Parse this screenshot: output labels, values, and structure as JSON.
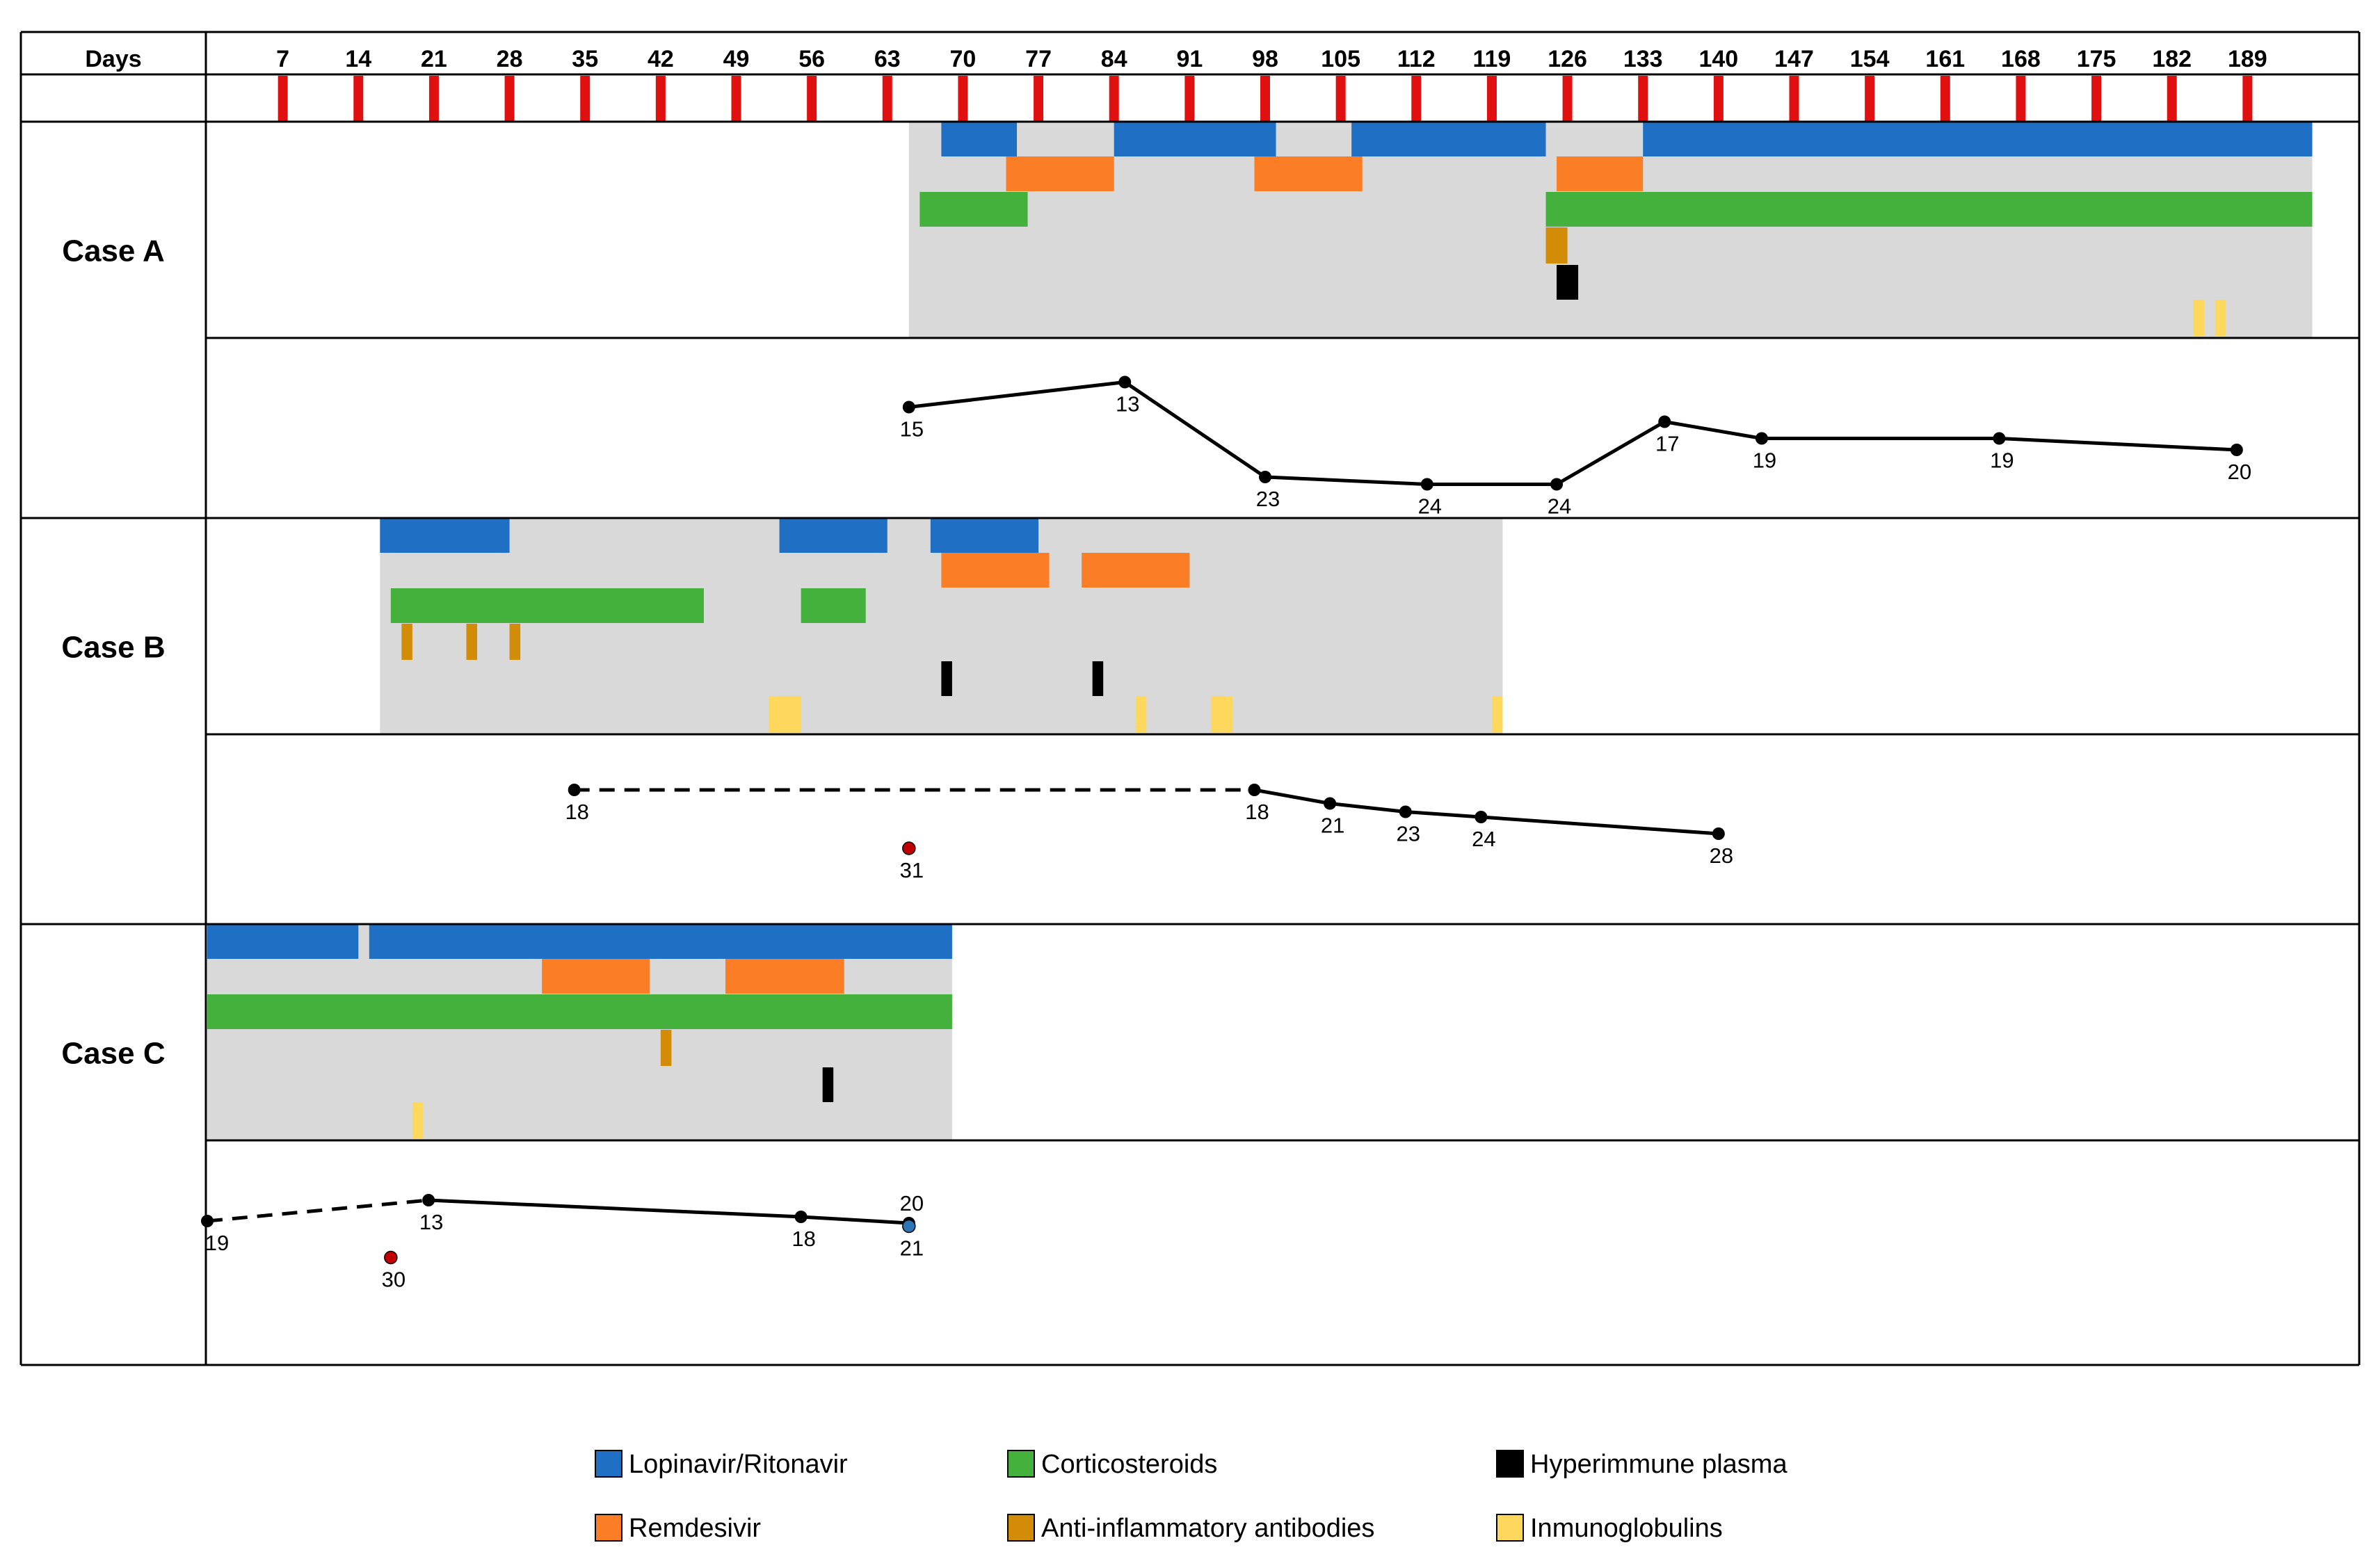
{
  "colors": {
    "lopinavir": "#1f6fc5",
    "remdesivir": "#fb7e26",
    "corticosteroids": "#43b13c",
    "anti_inflammatory": "#d38c07",
    "hyperimmune_plasma": "#000000",
    "immunoglobulins": "#fed85c",
    "hospital": "#d9d9d9",
    "day_tick": "#e01010",
    "grid": "#000000"
  },
  "chart_data": {
    "type": "timeline",
    "title": "",
    "xlabel": "Days",
    "x_range": [
      0,
      196
    ],
    "day_ticks": [
      7,
      14,
      21,
      28,
      35,
      42,
      49,
      56,
      63,
      70,
      77,
      84,
      91,
      98,
      105,
      112,
      119,
      126,
      133,
      140,
      147,
      154,
      161,
      168,
      175,
      182,
      189
    ],
    "legend": [
      {
        "key": "lopinavir",
        "label": "Lopinavir/Ritonavir"
      },
      {
        "key": "corticosteroids",
        "label": "Corticosteroids"
      },
      {
        "key": "hyperimmune_plasma",
        "label": "Hyperimmune  plasma"
      },
      {
        "key": "remdesivir",
        "label": "Remdesivir"
      },
      {
        "key": "anti_inflammatory",
        "label": "Anti-inflammatory antibodies"
      },
      {
        "key": "immunoglobulins",
        "label": "Inmunoglobulins"
      }
    ],
    "cases": [
      {
        "name": "Case A",
        "hospitalization": [
          65,
          195
        ],
        "treatments": [
          {
            "drug": "lopinavir",
            "lane": 0,
            "start": 68,
            "end": 75
          },
          {
            "drug": "lopinavir",
            "lane": 0,
            "start": 84,
            "end": 99
          },
          {
            "drug": "lopinavir",
            "lane": 0,
            "start": 106,
            "end": 124
          },
          {
            "drug": "lopinavir",
            "lane": 0,
            "start": 133,
            "end": 195
          },
          {
            "drug": "remdesivir",
            "lane": 1,
            "start": 74,
            "end": 84
          },
          {
            "drug": "remdesivir",
            "lane": 1,
            "start": 97,
            "end": 107
          },
          {
            "drug": "remdesivir",
            "lane": 1,
            "start": 125,
            "end": 133
          },
          {
            "drug": "corticosteroids",
            "lane": 2,
            "start": 66,
            "end": 76
          },
          {
            "drug": "corticosteroids",
            "lane": 2,
            "start": 124,
            "end": 195
          },
          {
            "drug": "anti_inflammatory",
            "lane": 3,
            "start": 124,
            "end": 126
          },
          {
            "drug": "hyperimmune_plasma",
            "lane": 4,
            "start": 125,
            "end": 127
          },
          {
            "drug": "immunoglobulins",
            "lane": 5,
            "start": 184,
            "end": 185
          },
          {
            "drug": "immunoglobulins",
            "lane": 5,
            "start": 186,
            "end": 187
          }
        ],
        "measurements": [
          {
            "day": 65,
            "value": 15,
            "level": 0.33,
            "label_pos": "below"
          },
          {
            "day": 85,
            "value": 13,
            "level": 0.09,
            "label_pos": "below"
          },
          {
            "day": 98,
            "value": 23,
            "level": 1.0,
            "label_pos": "below"
          },
          {
            "day": 113,
            "value": 24,
            "level": 1.07,
            "label_pos": "below"
          },
          {
            "day": 125,
            "value": 24,
            "level": 1.07,
            "label_pos": "below"
          },
          {
            "day": 135,
            "value": 17,
            "level": 0.47,
            "label_pos": "below"
          },
          {
            "day": 144,
            "value": 19,
            "level": 0.63,
            "label_pos": "below"
          },
          {
            "day": 166,
            "value": 19,
            "level": 0.63,
            "label_pos": "below"
          },
          {
            "day": 188,
            "value": 20,
            "level": 0.74,
            "label_pos": "below"
          }
        ],
        "segments": [
          {
            "from": 0,
            "to": 1,
            "style": "solid"
          },
          {
            "from": 1,
            "to": 2,
            "style": "solid"
          },
          {
            "from": 2,
            "to": 3,
            "style": "solid"
          },
          {
            "from": 3,
            "to": 4,
            "style": "solid"
          },
          {
            "from": 4,
            "to": 5,
            "style": "solid"
          },
          {
            "from": 5,
            "to": 6,
            "style": "solid"
          },
          {
            "from": 6,
            "to": 7,
            "style": "solid"
          },
          {
            "from": 7,
            "to": 8,
            "style": "solid"
          }
        ]
      },
      {
        "name": "Case B",
        "hospitalization": [
          16,
          120
        ],
        "treatments": [
          {
            "drug": "lopinavir",
            "lane": 0,
            "start": 16,
            "end": 28
          },
          {
            "drug": "lopinavir",
            "lane": 0,
            "start": 53,
            "end": 63
          },
          {
            "drug": "lopinavir",
            "lane": 0,
            "start": 67,
            "end": 77
          },
          {
            "drug": "remdesivir",
            "lane": 1,
            "start": 68,
            "end": 78
          },
          {
            "drug": "remdesivir",
            "lane": 1,
            "start": 81,
            "end": 91
          },
          {
            "drug": "corticosteroids",
            "lane": 2,
            "start": 17,
            "end": 46
          },
          {
            "drug": "corticosteroids",
            "lane": 2,
            "start": 55,
            "end": 61
          },
          {
            "drug": "anti_inflammatory",
            "lane": 3,
            "start": 18,
            "end": 19
          },
          {
            "drug": "anti_inflammatory",
            "lane": 3,
            "start": 24,
            "end": 25
          },
          {
            "drug": "anti_inflammatory",
            "lane": 3,
            "start": 28,
            "end": 29
          },
          {
            "drug": "hyperimmune_plasma",
            "lane": 4,
            "start": 68,
            "end": 69
          },
          {
            "drug": "hyperimmune_plasma",
            "lane": 4,
            "start": 82,
            "end": 83
          },
          {
            "drug": "immunoglobulins",
            "lane": 5,
            "start": 52,
            "end": 55
          },
          {
            "drug": "immunoglobulins",
            "lane": 5,
            "start": 86,
            "end": 87
          },
          {
            "drug": "immunoglobulins",
            "lane": 5,
            "start": 93,
            "end": 95
          },
          {
            "drug": "immunoglobulins",
            "lane": 5,
            "start": 119,
            "end": 120
          }
        ],
        "measurements": [
          {
            "day": 34,
            "value": 18,
            "level": 0.2,
            "label_pos": "below"
          },
          {
            "day": 97,
            "value": 18,
            "level": 0.2,
            "label_pos": "below"
          },
          {
            "day": 104,
            "value": 21,
            "level": 0.33,
            "label_pos": "below"
          },
          {
            "day": 111,
            "value": 23,
            "level": 0.41,
            "label_pos": "below"
          },
          {
            "day": 118,
            "value": 24,
            "level": 0.46,
            "label_pos": "below"
          },
          {
            "day": 140,
            "value": 28,
            "level": 0.62,
            "label_pos": "below"
          },
          {
            "day": 65,
            "value": 31,
            "level": 0.76,
            "label_pos": "below",
            "marker": "red"
          }
        ],
        "segments": [
          {
            "from": 0,
            "to": 1,
            "style": "dashed"
          },
          {
            "from": 1,
            "to": 2,
            "style": "solid"
          },
          {
            "from": 2,
            "to": 3,
            "style": "solid"
          },
          {
            "from": 3,
            "to": 4,
            "style": "solid"
          },
          {
            "from": 4,
            "to": 5,
            "style": "solid"
          }
        ]
      },
      {
        "name": "Case C",
        "hospitalization": [
          0,
          69
        ],
        "treatments": [
          {
            "drug": "lopinavir",
            "lane": 0,
            "start": 0,
            "end": 14
          },
          {
            "drug": "lopinavir",
            "lane": 0,
            "start": 15,
            "end": 69
          },
          {
            "drug": "remdesivir",
            "lane": 1,
            "start": 31,
            "end": 41
          },
          {
            "drug": "remdesivir",
            "lane": 1,
            "start": 48,
            "end": 59
          },
          {
            "drug": "corticosteroids",
            "lane": 2,
            "start": 0,
            "end": 69
          },
          {
            "drug": "anti_inflammatory",
            "lane": 3,
            "start": 42,
            "end": 43
          },
          {
            "drug": "hyperimmune_plasma",
            "lane": 4,
            "start": 57,
            "end": 58
          },
          {
            "drug": "immunoglobulins",
            "lane": 5,
            "start": 19,
            "end": 20
          }
        ],
        "measurements": [
          {
            "day": 0,
            "value": 19,
            "level": 0.44,
            "label_pos": "below"
          },
          {
            "day": 20.5,
            "value": 13,
            "level": 0.24,
            "label_pos": "below"
          },
          {
            "day": 55,
            "value": 18,
            "level": 0.4,
            "label_pos": "below"
          },
          {
            "day": 65,
            "value": 20,
            "level": 0.46,
            "label_pos": "above"
          },
          {
            "day": 65,
            "value": 21,
            "level": 0.49,
            "label_pos": "below",
            "marker": "blue"
          },
          {
            "day": 17,
            "value": 30,
            "level": 0.79,
            "label_pos": "below",
            "marker": "red"
          }
        ],
        "segments": [
          {
            "from": 0,
            "to": 1,
            "style": "dashed"
          },
          {
            "from": 1,
            "to": 2,
            "style": "solid"
          },
          {
            "from": 2,
            "to": 3,
            "style": "solid"
          }
        ]
      }
    ]
  }
}
